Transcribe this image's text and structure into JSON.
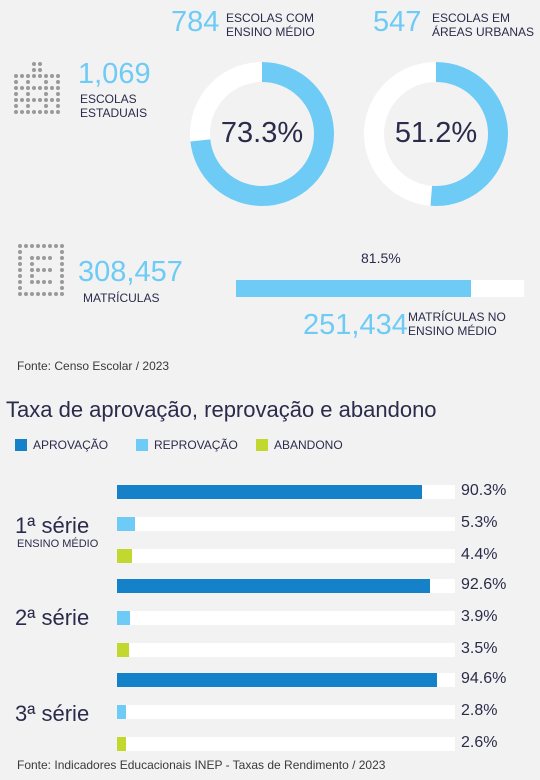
{
  "colors": {
    "approval": "#1481c9",
    "failure": "#6ecbf5",
    "dropout": "#c3d82e",
    "track": "#ffffff",
    "accent": "#6ecbf5",
    "text": "#2b2b4b"
  },
  "schools": {
    "icon": "school-building-icon",
    "value": "1,069",
    "label": "ESCOLAS\nESTADUAIS"
  },
  "donuts": [
    {
      "count": "784",
      "label": "ESCOLAS COM\nENSINO MÉDIO",
      "percent_label": "73.3%",
      "fraction": 0.733
    },
    {
      "count": "547",
      "label": "ESCOLAS EM\nÁREAS URBANAS",
      "percent_label": "51.2%",
      "fraction": 0.512
    }
  ],
  "enrollments": {
    "icon": "enrollment-form-icon",
    "value": "308,457",
    "label": "MATRÍCULAS",
    "bar_percent_label": "81.5%",
    "bar_fraction": 0.815,
    "sub_value": "251,434",
    "sub_label": "MATRÍCULAS NO\nENSINO MÉDIO"
  },
  "source1": "Fonte: Censo Escolar / 2023",
  "chart_title": "Taxa de aprovação, reprovação e abandono",
  "legend": [
    "APROVAÇÃO",
    "REPROVAÇÃO",
    "ABANDONO"
  ],
  "chart_data": {
    "type": "bar",
    "orientation": "horizontal",
    "title": "Taxa de aprovação, reprovação e abandono",
    "categories": [
      "1ª série",
      "2ª série",
      "3ª série"
    ],
    "category_sublabels": [
      "ENSINO MÉDIO",
      "",
      ""
    ],
    "series": [
      {
        "name": "APROVAÇÃO",
        "values": [
          90.3,
          92.6,
          94.6
        ],
        "labels": [
          "90.3%",
          "92.6%",
          "94.6%"
        ]
      },
      {
        "name": "REPROVAÇÃO",
        "values": [
          5.3,
          3.9,
          2.8
        ],
        "labels": [
          "5.3%",
          "3.9%",
          "2.8%"
        ]
      },
      {
        "name": "ABANDONO",
        "values": [
          4.4,
          3.5,
          2.6
        ],
        "labels": [
          "4.4%",
          "3.5%",
          "2.6%"
        ]
      }
    ],
    "xlim": [
      0,
      100
    ],
    "grid": false,
    "legend_position": "top-left"
  },
  "source2": "Fonte: Indicadores Educacionais INEP - Taxas de Rendimento / 2023"
}
